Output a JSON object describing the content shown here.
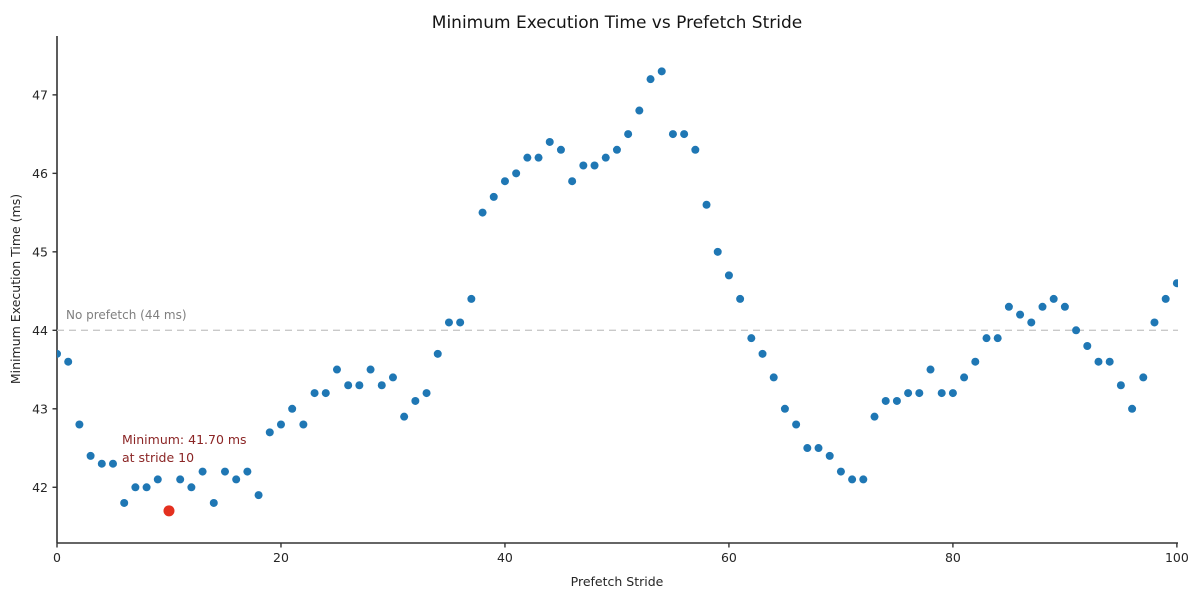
{
  "figure": {
    "title": "Minimum Execution Time vs Prefetch Stride"
  },
  "chart_data": {
    "type": "scatter",
    "title": "Minimum Execution Time vs Prefetch Stride",
    "xlabel": "Prefetch Stride",
    "ylabel": "Minimum Execution Time (ms)",
    "xlim": [
      0,
      100.1
    ],
    "ylim": [
      41.29,
      47.75
    ],
    "xticks": [
      0,
      20,
      40,
      60,
      80,
      100
    ],
    "yticks": [
      42,
      43,
      44,
      45,
      46,
      47
    ],
    "grid": false,
    "legend": "none",
    "point_color": "#1f77b4",
    "x": [
      0,
      1,
      2,
      3,
      4,
      5,
      6,
      7,
      8,
      9,
      10,
      11,
      12,
      13,
      14,
      15,
      16,
      17,
      18,
      19,
      20,
      21,
      22,
      23,
      24,
      25,
      26,
      27,
      28,
      29,
      30,
      31,
      32,
      33,
      34,
      35,
      36,
      37,
      38,
      39,
      40,
      41,
      42,
      43,
      44,
      45,
      46,
      47,
      48,
      49,
      50,
      51,
      52,
      53,
      54,
      55,
      56,
      57,
      58,
      59,
      60,
      61,
      62,
      63,
      64,
      65,
      66,
      67,
      68,
      69,
      70,
      71,
      72,
      73,
      74,
      75,
      76,
      77,
      78,
      79,
      80,
      81,
      82,
      83,
      84,
      85,
      86,
      87,
      88,
      89,
      90,
      91,
      92,
      93,
      94,
      95,
      96,
      97,
      98,
      99,
      100
    ],
    "y": [
      43.7,
      43.6,
      42.8,
      42.4,
      42.3,
      42.3,
      41.8,
      42.0,
      42.0,
      42.1,
      41.7,
      42.1,
      42.0,
      42.2,
      41.8,
      42.2,
      42.1,
      42.2,
      41.9,
      42.7,
      42.8,
      43.0,
      42.8,
      43.2,
      43.2,
      43.5,
      43.3,
      43.3,
      43.5,
      43.3,
      43.4,
      42.9,
      43.1,
      43.2,
      43.7,
      44.1,
      44.1,
      44.4,
      45.5,
      45.7,
      45.9,
      46.0,
      46.2,
      46.2,
      46.4,
      46.3,
      45.9,
      46.1,
      46.1,
      46.2,
      46.3,
      46.5,
      46.8,
      47.2,
      47.3,
      46.5,
      46.5,
      46.3,
      45.6,
      45.0,
      44.7,
      44.4,
      43.9,
      43.7,
      43.4,
      43.0,
      42.8,
      42.5,
      42.5,
      42.4,
      42.2,
      42.1,
      42.1,
      42.9,
      43.1,
      43.1,
      43.2,
      43.2,
      43.5,
      43.2,
      43.2,
      43.4,
      43.6,
      43.9,
      43.9,
      44.3,
      44.2,
      44.1,
      44.3,
      44.4,
      44.3,
      44.0,
      43.8,
      43.6,
      43.6,
      43.3,
      43.0,
      43.4,
      44.1,
      44.4,
      44.6
    ],
    "highlight_point": {
      "x": 10,
      "y": 41.7,
      "color": "#e4301f"
    },
    "reference_line": {
      "y": 44,
      "label": "No prefetch (44 ms)",
      "line_color": "#c9c9c9",
      "label_color": "#7f7f7f",
      "style": "dashed"
    },
    "annotation": {
      "line1": "Minimum: 41.70 ms",
      "line2": "at stride 10",
      "color": "#8b2525"
    }
  }
}
